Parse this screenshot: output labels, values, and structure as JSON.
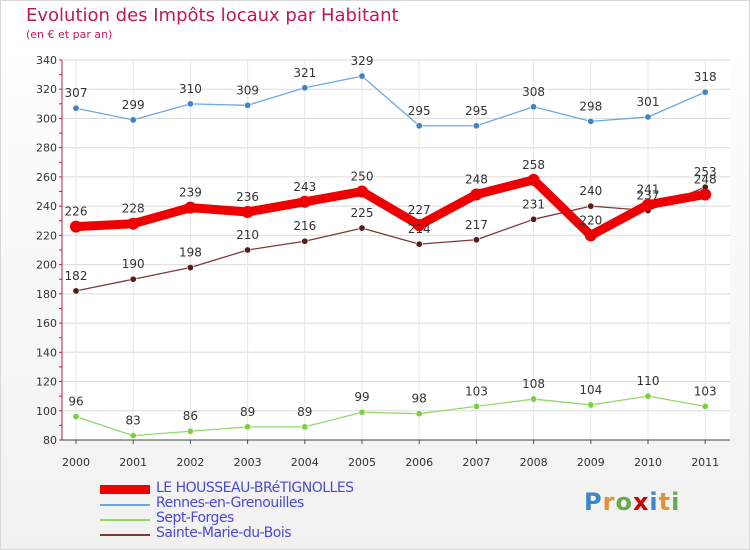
{
  "chart_data": {
    "type": "line",
    "title": "Evolution des Impôts locaux par Habitant",
    "subtitle": "(en € et par an)",
    "xlabel": "",
    "ylabel": "",
    "ylim": [
      80,
      340
    ],
    "yticks": [
      80,
      100,
      120,
      140,
      160,
      180,
      200,
      220,
      240,
      260,
      280,
      300,
      320,
      340
    ],
    "categories": [
      "2000",
      "2001",
      "2002",
      "2003",
      "2004",
      "2005",
      "2006",
      "2007",
      "2008",
      "2009",
      "2010",
      "2011"
    ],
    "grid": true,
    "legend_position": "bottom-left",
    "series": [
      {
        "name": "LE HOUSSEAU-BRéTIGNOLLES",
        "color": "#ee0000",
        "marker_color": "#ee0000",
        "values": [
          226,
          228,
          239,
          236,
          243,
          250,
          227,
          248,
          258,
          220,
          241,
          248
        ]
      },
      {
        "name": "Rennes-en-Grenouilles",
        "color": "#6fa8dc",
        "marker_color": "#3d85c6",
        "values": [
          307,
          299,
          310,
          309,
          321,
          329,
          295,
          295,
          308,
          298,
          301,
          318
        ]
      },
      {
        "name": "Sept-Forges",
        "color": "#93d86a",
        "marker_color": "#7cd03b",
        "values": [
          96,
          83,
          86,
          89,
          89,
          99,
          98,
          103,
          108,
          104,
          110,
          103
        ]
      },
      {
        "name": "Sainte-Marie-du-Bois",
        "color": "#7a3b3b",
        "marker_color": "#5a1a1a",
        "values": [
          182,
          190,
          198,
          210,
          216,
          225,
          214,
          217,
          231,
          240,
          237,
          253
        ]
      }
    ]
  },
  "logo": {
    "letters": [
      "P",
      "r",
      "o",
      "x",
      "i",
      "t",
      "i"
    ],
    "colors": [
      "#3d85c6",
      "#e69138",
      "#6aa84f",
      "#cc0000",
      "#3d85c6",
      "#e69138",
      "#6aa84f"
    ]
  }
}
